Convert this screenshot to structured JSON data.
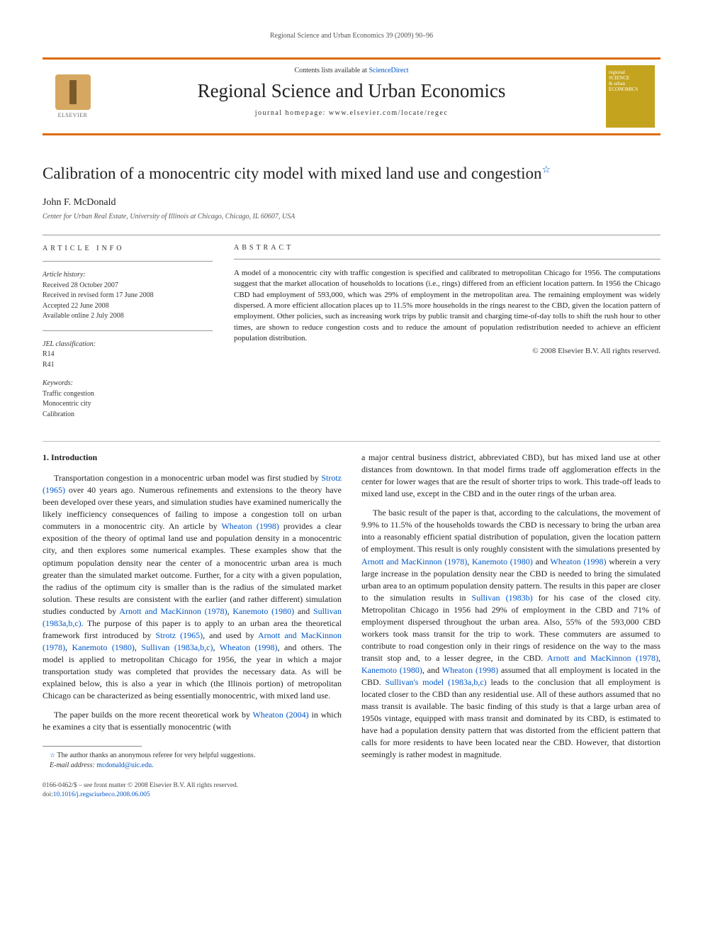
{
  "running_header": "Regional Science and Urban Economics 39 (2009) 90–96",
  "header": {
    "contents_prefix": "Contents lists available at ",
    "contents_link": "ScienceDirect",
    "journal_title": "Regional Science and Urban Economics",
    "homepage_prefix": "journal homepage: ",
    "homepage_url": "www.elsevier.com/locate/regec",
    "publisher_name": "ELSEVIER",
    "cover_line1": "regional",
    "cover_line2": "SCIENCE",
    "cover_line3": "& urban",
    "cover_line4": "ECONOMICS"
  },
  "article": {
    "title": "Calibration of a monocentric city model with mixed land use and congestion",
    "star_symbol": "☆",
    "author": "John F. McDonald",
    "affiliation": "Center for Urban Real Estate, University of Illinois at Chicago, Chicago, IL 60607, USA"
  },
  "meta": {
    "article_info_heading": "ARTICLE INFO",
    "history_heading": "Article history:",
    "history": {
      "received": "Received 28 October 2007",
      "revised": "Received in revised form 17 June 2008",
      "accepted": "Accepted 22 June 2008",
      "online": "Available online 2 July 2008"
    },
    "jel_heading": "JEL classification:",
    "jel_codes": [
      "R14",
      "R41"
    ],
    "keywords_heading": "Keywords:",
    "keywords": [
      "Traffic congestion",
      "Monocentric city",
      "Calibration"
    ]
  },
  "abstract": {
    "heading": "ABSTRACT",
    "text": "A model of a monocentric city with traffic congestion is specified and calibrated to metropolitan Chicago for 1956. The computations suggest that the market allocation of households to locations (i.e., rings) differed from an efficient location pattern. In 1956 the Chicago CBD had employment of 593,000, which was 29% of employment in the metropolitan area. The remaining employment was widely dispersed. A more efficient allocation places up to 11.5% more households in the rings nearest to the CBD, given the location pattern of employment. Other policies, such as increasing work trips by public transit and charging time-of-day tolls to shift the rush hour to other times, are shown to reduce congestion costs and to reduce the amount of population redistribution needed to achieve an efficient population distribution.",
    "copyright": "© 2008 Elsevier B.V. All rights reserved."
  },
  "body": {
    "section_heading": "1. Introduction",
    "col1_para1_a": "Transportation congestion in a monocentric urban model was first studied by ",
    "col1_cite1": "Strotz (1965)",
    "col1_para1_b": " over 40 years ago. Numerous refinements and extensions to the theory have been developed over these years, and simulation studies have examined numerically the likely inefficiency consequences of failing to impose a congestion toll on urban commuters in a monocentric city. An article by ",
    "col1_cite2": "Wheaton (1998)",
    "col1_para1_c": " provides a clear exposition of the theory of optimal land use and population density in a monocentric city, and then explores some numerical examples. These examples show that the optimum population density near the center of a monocentric urban area is much greater than the simulated market outcome. Further, for a city with a given population, the radius of the optimum city is smaller than is the radius of the simulated market solution. These results are consistent with the earlier (and rather different) simulation studies conducted by ",
    "col1_cite3": "Arnott and MacKinnon (1978)",
    "col1_para1_d": ", ",
    "col1_cite4": "Kanemoto (1980)",
    "col1_para1_e": " and ",
    "col1_cite5": "Sullivan (1983a,b,c)",
    "col1_para1_f": ". The purpose of this paper is to apply to an urban area the theoretical framework first introduced by ",
    "col1_cite6": "Strotz (1965)",
    "col1_para1_g": ", and used by ",
    "col1_cite7": "Arnott and MacKinnon (1978)",
    "col1_para1_h": ", ",
    "col1_cite8": "Kanemoto (1980)",
    "col1_para1_i": ", ",
    "col1_cite9": "Sullivan (1983a,b,c)",
    "col1_para1_j": ", ",
    "col1_cite10": "Wheaton (1998)",
    "col1_para1_k": ", and others. The model is applied to metropolitan Chicago for 1956, the year in which a major transportation study was completed that provides the necessary data. As will be explained below, this is also a year in which (the Illinois portion) of metropolitan Chicago can be characterized as being essentially monocentric, with mixed land use.",
    "col1_para2_a": "The paper builds on the more recent theoretical work by ",
    "col1_cite11": "Wheaton (2004)",
    "col1_para2_b": " in which he examines a city that is essentially monocentric (with",
    "col2_para1": "a major central business district, abbreviated CBD), but has mixed land use at other distances from downtown. In that model firms trade off agglomeration effects in the center for lower wages that are the result of shorter trips to work. This trade-off leads to mixed land use, except in the CBD and in the outer rings of the urban area.",
    "col2_para2_a": "The basic result of the paper is that, according to the calculations, the movement of 9.9% to 11.5% of the households towards the CBD is necessary to bring the urban area into a reasonably efficient spatial distribution of population, given the location pattern of employment. This result is only roughly consistent with the simulations presented by ",
    "col2_cite1": "Arnott and MacKinnon (1978)",
    "col2_para2_b": ", ",
    "col2_cite2": "Kanemoto (1980)",
    "col2_para2_c": " and ",
    "col2_cite3": "Wheaton (1998)",
    "col2_para2_d": " wherein a very large increase in the population density near the CBD is needed to bring the simulated urban area to an optimum population density pattern. The results in this paper are closer to the simulation results in ",
    "col2_cite4": "Sullivan (1983b)",
    "col2_para2_e": " for his case of the closed city. Metropolitan Chicago in 1956 had 29% of employment in the CBD and 71% of employment dispersed throughout the urban area. Also, 55% of the 593,000 CBD workers took mass transit for the trip to work. These commuters are assumed to contribute to road congestion only in their rings of residence on the way to the mass transit stop and, to a lesser degree, in the CBD. ",
    "col2_cite5": "Arnott and MacKinnon (1978)",
    "col2_para2_f": ", ",
    "col2_cite6": "Kanemoto (1980)",
    "col2_para2_g": ", and ",
    "col2_cite7": "Wheaton (1998)",
    "col2_para2_h": " assumed that all employment is located in the CBD. ",
    "col2_cite8": "Sullivan's model (1983a,b,c)",
    "col2_para2_i": " leads to the conclusion that all employment is located closer to the CBD than any residential use. All of these authors assumed that no mass transit is available. The basic finding of this study is that a large urban area of 1950s vintage, equipped with mass transit and dominated by its CBD, is estimated to have had a population density pattern that was distorted from the efficient pattern that calls for more residents to have been located near the CBD. However, that distortion seemingly is rather modest in magnitude."
  },
  "footnotes": {
    "star_text": "The author thanks an anonymous referee for very helpful suggestions.",
    "email_label": "E-mail address:",
    "email": "mcdonald@uic.edu."
  },
  "bottom": {
    "issn_line": "0166-0462/$ – see front matter © 2008 Elsevier B.V. All rights reserved.",
    "doi_label": "doi:",
    "doi": "10.1016/j.regsciurbeco.2008.06.005"
  },
  "colors": {
    "accent": "#de6b0a",
    "link": "#0056c7",
    "text": "#222222",
    "muted": "#555555",
    "cover_bg": "#c4a31e"
  },
  "typography": {
    "body_fontsize_pt": 9,
    "title_fontsize_pt": 18,
    "journal_title_fontsize_pt": 22,
    "meta_fontsize_pt": 8
  }
}
